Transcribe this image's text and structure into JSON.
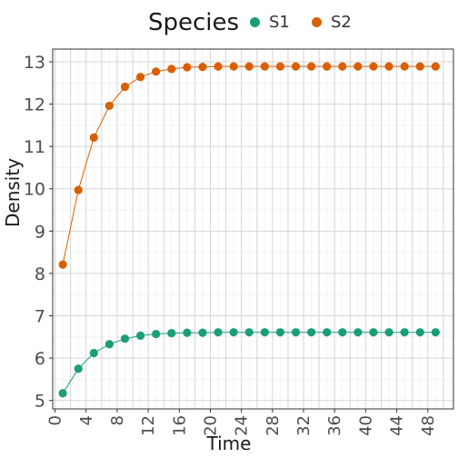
{
  "legend": {
    "title": "Species",
    "items": [
      {
        "label": "S1",
        "color": "#1b9e77"
      },
      {
        "label": "S2",
        "color": "#d95f02"
      }
    ]
  },
  "chart_data": {
    "type": "line",
    "xlabel": "Time",
    "ylabel": "Density",
    "xlim": [
      -0.3,
      51.3
    ],
    "ylim": [
      4.8,
      13.3
    ],
    "x_ticks": [
      0,
      4,
      8,
      12,
      16,
      20,
      24,
      28,
      32,
      36,
      40,
      44,
      48
    ],
    "y_ticks": [
      5,
      6,
      7,
      8,
      9,
      10,
      11,
      12,
      13
    ],
    "grid": true,
    "legend_position": "top",
    "x": [
      1,
      3,
      5,
      7,
      9,
      11,
      13,
      15,
      17,
      19,
      21,
      23,
      25,
      27,
      29,
      31,
      33,
      35,
      37,
      39,
      41,
      43,
      45,
      47,
      49
    ],
    "series": [
      {
        "name": "S1",
        "color": "#1b9e77",
        "values": [
          5.17,
          5.75,
          6.12,
          6.33,
          6.46,
          6.53,
          6.57,
          6.59,
          6.6,
          6.6,
          6.61,
          6.61,
          6.61,
          6.61,
          6.61,
          6.61,
          6.61,
          6.61,
          6.61,
          6.61,
          6.61,
          6.61,
          6.61,
          6.61,
          6.61
        ]
      },
      {
        "name": "S2",
        "color": "#d95f02",
        "values": [
          8.21,
          9.97,
          11.21,
          11.96,
          12.41,
          12.64,
          12.77,
          12.83,
          12.87,
          12.88,
          12.89,
          12.89,
          12.89,
          12.89,
          12.89,
          12.89,
          12.89,
          12.89,
          12.89,
          12.89,
          12.89,
          12.89,
          12.89,
          12.89,
          12.89
        ]
      }
    ]
  }
}
